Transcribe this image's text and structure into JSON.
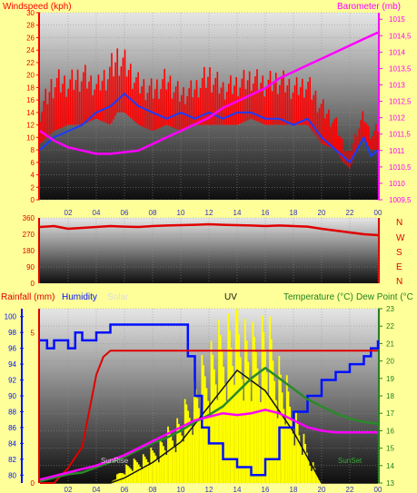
{
  "colors": {
    "page_bg": "#ffff99",
    "wind": "#ff0000",
    "gust": "#ff0000",
    "avg_wind": "#1a3cff",
    "barometer": "#ff00ff",
    "direction": "#e00000",
    "humidity": "#0010ff",
    "solar": "#ffff00",
    "uv": "#111111",
    "temperature": "#ff00ff",
    "dewpoint": "#2a8a2a",
    "rainfall": "#e00000"
  },
  "header": {
    "windspeed_label": "Windspeed (kph)",
    "barometer_label": "Barometer (mb)",
    "rainfall_label": "Rainfall (mm)",
    "humidity_label": "Humidity",
    "solar_label": "Solar",
    "uv_label": "UV",
    "temperature_label": "Temperature (°C)",
    "dewpoint_label": "Dew Point (°C"
  },
  "annotations": {
    "sunrise": "SunRise",
    "sunset": "SunSet"
  },
  "chart_data": [
    {
      "type": "line",
      "name": "wind-barometer",
      "x_ticks": [
        "02",
        "04",
        "06",
        "08",
        "10",
        "12",
        "14",
        "16",
        "18",
        "20",
        "22",
        "00"
      ],
      "left_axis": {
        "label": "Windspeed (kph)",
        "ticks": [
          0,
          2,
          4,
          6,
          8,
          10,
          12,
          14,
          16,
          18,
          20,
          22,
          24,
          26,
          28,
          30
        ],
        "range": [
          0,
          30
        ]
      },
      "right_axis": {
        "label": "Barometer (mb)",
        "ticks": [
          "1009,5",
          "1010",
          "1010,5",
          "1011",
          "1011,5",
          "1012",
          "1012,5",
          "1013",
          "1013,5",
          "1014",
          "1014,5",
          "1015"
        ],
        "range": [
          1009.5,
          1015.2
        ]
      },
      "x_range": [
        0,
        24
      ],
      "series": [
        {
          "key": "gust",
          "color": "#ff0000",
          "x": [
            0,
            1,
            2,
            3,
            4,
            5,
            5.5,
            6,
            6.5,
            7,
            8,
            9,
            10,
            11,
            12,
            13,
            14,
            15,
            16,
            17,
            18,
            19,
            20,
            21,
            21.5,
            22,
            22.5,
            23,
            23.5,
            24
          ],
          "y": [
            16,
            22,
            21,
            23,
            20,
            24,
            26,
            25,
            23,
            21,
            20,
            22,
            19,
            20,
            23,
            20,
            21,
            22,
            21,
            22,
            20,
            21,
            17,
            14,
            10,
            8,
            12,
            15,
            11,
            13
          ]
        },
        {
          "key": "wind_min",
          "color": "#ff0000",
          "x": [
            0,
            1,
            2,
            3,
            4,
            5,
            5.5,
            6,
            6.5,
            7,
            8,
            9,
            10,
            11,
            12,
            13,
            14,
            15,
            16,
            17,
            18,
            19,
            20,
            21,
            21.5,
            22,
            22.5,
            23,
            23.5,
            24
          ],
          "y": [
            9,
            11,
            12,
            12,
            13,
            12,
            14,
            14,
            13,
            12,
            11,
            12,
            11,
            12,
            12,
            12,
            12,
            13,
            12,
            12,
            12,
            12,
            9,
            8,
            6,
            5,
            8,
            10,
            8,
            8
          ]
        },
        {
          "key": "avg_wind",
          "color": "#1a3cff",
          "x": [
            0,
            1,
            2,
            3,
            4,
            5,
            5.5,
            6,
            6.5,
            7,
            8,
            9,
            10,
            11,
            12,
            13,
            14,
            15,
            16,
            17,
            18,
            19,
            20,
            21,
            21.5,
            22,
            22.5,
            23,
            23.5,
            24
          ],
          "y": [
            8,
            10,
            11,
            12,
            14,
            15,
            16,
            17,
            16,
            15,
            14,
            13,
            14,
            13,
            14,
            13,
            14,
            14,
            13,
            13,
            12,
            13,
            10,
            8,
            7,
            6,
            8,
            10,
            7,
            8
          ]
        },
        {
          "key": "barometer",
          "color": "#ff00ff",
          "x": [
            0,
            1,
            2,
            3,
            4,
            5,
            6,
            7,
            8,
            9,
            10,
            11,
            12,
            13,
            14,
            15,
            16,
            17,
            18,
            19,
            20,
            21,
            22,
            23,
            24
          ],
          "y": [
            1011.6,
            1011.3,
            1011.1,
            1011.0,
            1010.9,
            1010.9,
            1010.95,
            1011.0,
            1011.2,
            1011.4,
            1011.6,
            1011.8,
            1012.0,
            1012.3,
            1012.5,
            1012.7,
            1012.9,
            1013.2,
            1013.4,
            1013.6,
            1013.8,
            1014.0,
            1014.2,
            1014.4,
            1014.6
          ]
        }
      ]
    },
    {
      "type": "line",
      "name": "wind-direction",
      "x_ticks": [
        "02",
        "04",
        "06",
        "08",
        "10",
        "12",
        "14",
        "16",
        "18",
        "20",
        "22",
        "00"
      ],
      "left_axis": {
        "ticks": [
          0,
          90,
          180,
          270,
          360
        ],
        "range": [
          0,
          360
        ]
      },
      "right_labels": [
        "N",
        "W",
        "S",
        "E",
        "N"
      ],
      "x_range": [
        0,
        24
      ],
      "series": [
        {
          "key": "direction",
          "color": "#e00000",
          "x": [
            0,
            1,
            2,
            3,
            4,
            5,
            6,
            7,
            8,
            9,
            10,
            11,
            12,
            13,
            14,
            15,
            16,
            17,
            18,
            19,
            20,
            21,
            22,
            23,
            24
          ],
          "y": [
            310,
            315,
            300,
            305,
            310,
            315,
            312,
            310,
            315,
            318,
            320,
            322,
            325,
            322,
            320,
            318,
            315,
            318,
            315,
            312,
            300,
            290,
            280,
            270,
            265
          ]
        }
      ]
    },
    {
      "type": "line",
      "name": "temperature-humidity",
      "x_ticks": [
        "02",
        "04",
        "06",
        "08",
        "10",
        "12",
        "14",
        "16",
        "18",
        "20",
        "22",
        "00"
      ],
      "humidity_axis": {
        "ticks": [
          80,
          82,
          84,
          86,
          88,
          90,
          92,
          94,
          96,
          98,
          100
        ],
        "range": [
          79,
          101
        ]
      },
      "rain_axis": {
        "ticks": [
          0,
          5
        ],
        "range": [
          0,
          5.8
        ]
      },
      "temperature_axis": {
        "ticks": [
          13,
          14,
          15,
          16,
          17,
          18,
          19,
          20,
          21,
          22,
          23
        ],
        "range": [
          13,
          23
        ]
      },
      "x_range": [
        0,
        24
      ],
      "series": [
        {
          "key": "humidity",
          "color": "#0010ff",
          "x": [
            0,
            0.5,
            1,
            2,
            2.5,
            3,
            4,
            5,
            6,
            7,
            8,
            9,
            10,
            10.5,
            11,
            11.5,
            12,
            13,
            14,
            15,
            16,
            17,
            18,
            19,
            20,
            21,
            22,
            23,
            23.5,
            24
          ],
          "y": [
            97,
            96,
            97,
            96,
            98,
            97,
            98,
            99,
            99,
            99,
            99,
            99,
            99,
            95,
            90,
            86,
            84,
            82,
            81,
            80,
            82,
            86,
            88,
            90,
            92,
            93,
            94,
            95,
            96,
            97
          ]
        },
        {
          "key": "rainfall",
          "color": "#e00000",
          "x": [
            0,
            1,
            2,
            3,
            4,
            4.5,
            5,
            24
          ],
          "y": [
            0,
            0,
            0.5,
            1.2,
            3.6,
            4.2,
            4.4,
            4.4
          ]
        },
        {
          "key": "temperature",
          "color": "#ff00ff",
          "x": [
            0,
            1,
            2,
            3,
            4,
            5,
            6,
            7,
            8,
            9,
            10,
            11,
            12,
            13,
            14,
            15,
            16,
            17,
            18,
            19,
            20,
            21,
            22,
            23,
            24
          ],
          "y": [
            13.2,
            13.4,
            13.6,
            13.8,
            14.0,
            14.3,
            14.6,
            15.0,
            15.4,
            15.8,
            16.2,
            16.6,
            16.8,
            17.0,
            16.9,
            17.0,
            17.2,
            17.0,
            16.6,
            16.2,
            16.0,
            15.9,
            15.9,
            15.9,
            15.9
          ]
        },
        {
          "key": "dewpoint",
          "color": "#2a8a2a",
          "x": [
            0,
            1,
            2,
            3,
            4,
            5,
            6,
            7,
            8,
            9,
            10,
            11,
            12,
            13,
            14,
            15,
            16,
            17,
            18,
            19,
            20,
            21,
            22,
            23,
            24
          ],
          "y": [
            13.1,
            13.3,
            13.5,
            13.6,
            13.9,
            14.2,
            14.5,
            14.9,
            15.3,
            15.6,
            16.0,
            16.5,
            16.9,
            17.4,
            18.2,
            19.0,
            19.6,
            19.0,
            18.4,
            17.8,
            17.4,
            17.0,
            16.7,
            16.5,
            16.4
          ]
        },
        {
          "key": "uv",
          "color": "#111111",
          "x": [
            0,
            5,
            6,
            8,
            10,
            12,
            14,
            15,
            16,
            17,
            18,
            19,
            20,
            24
          ],
          "y": [
            0,
            0,
            0.1,
            0.4,
            0.8,
            1.5,
            2.2,
            2.0,
            1.8,
            1.4,
            1.0,
            0.5,
            0,
            0
          ]
        },
        {
          "key": "solar",
          "color": "#ffff00",
          "x": [
            0,
            5,
            6,
            8,
            10,
            12,
            13,
            14,
            15,
            16,
            17,
            18,
            19,
            20,
            24
          ],
          "y": [
            0,
            0,
            0.3,
            0.6,
            1.2,
            2.4,
            2.8,
            3.2,
            2.6,
            3.0,
            2.2,
            1.4,
            0.6,
            0,
            0
          ]
        }
      ]
    }
  ]
}
